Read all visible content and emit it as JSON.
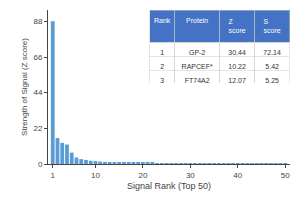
{
  "chart_data": [
    {
      "type": "bar",
      "xlabel": "Signal Rank (Top 50)",
      "ylabel": "Strength of Signal (Z score)",
      "x": [
        1,
        2,
        3,
        4,
        5,
        6,
        7,
        8,
        9,
        10,
        11,
        12,
        13,
        14,
        15,
        16,
        17,
        18,
        19,
        20,
        21,
        22,
        23,
        24,
        25,
        26,
        27,
        28,
        29,
        30,
        31,
        32,
        33,
        34,
        35,
        36,
        37,
        38,
        39,
        40,
        41,
        42,
        43,
        44,
        45,
        46,
        47,
        48,
        49,
        50
      ],
      "values": [
        88,
        16,
        13,
        12,
        7,
        4,
        3,
        2.5,
        2,
        1.8,
        1.5,
        1.3,
        1.2,
        1.1,
        1.0,
        0.9,
        0.85,
        0.8,
        0.75,
        0.7,
        0.65,
        0.62,
        0.6,
        0.58,
        0.55,
        0.53,
        0.51,
        0.5,
        0.48,
        0.46,
        0.44,
        0.43,
        0.42,
        0.41,
        0.4,
        0.39,
        0.38,
        0.37,
        0.36,
        0.35,
        0.34,
        0.33,
        0.32,
        0.31,
        0.3,
        0.29,
        0.28,
        0.27,
        0.26,
        0.25
      ],
      "color": "#5b9bd5",
      "xlim": [
        0,
        51
      ],
      "xticks": [
        1,
        10,
        20,
        30,
        40,
        50
      ],
      "ylim": [
        0,
        95
      ],
      "yticks": [
        0,
        22,
        44,
        66,
        88
      ],
      "grid": false
    },
    {
      "type": "table",
      "columns": [
        "Rank",
        "Protein",
        "Z score",
        "S score"
      ],
      "rows": [
        [
          "1",
          "GP-2",
          "30.44",
          "72.14"
        ],
        [
          "2",
          "RAPCEF*",
          "10.22",
          "5.42"
        ],
        [
          "3",
          "FT74A2",
          "12.07",
          "5.25"
        ]
      ],
      "color": "#4472c4"
    }
  ]
}
